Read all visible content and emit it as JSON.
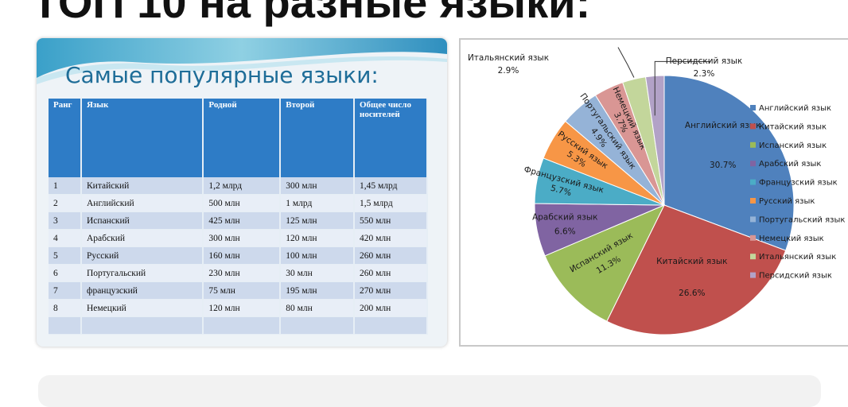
{
  "headline": "ТОП 10 на разные языки:",
  "slide": {
    "title": "Самые популярные языки:",
    "table": {
      "headers": [
        "Ранг",
        "Язык",
        "Родной",
        "Второй",
        "Общее число носителей"
      ],
      "rows": [
        [
          "1",
          "Китайский",
          "1,2 млрд",
          "300 млн",
          "1,45 млрд"
        ],
        [
          "2",
          "Английский",
          "500 млн",
          "1 млрд",
          "1,5 млрд"
        ],
        [
          "3",
          "Испанский",
          "425 млн",
          "125 млн",
          "550 млн"
        ],
        [
          "4",
          "Арабский",
          "300 млн",
          "120 млн",
          "420 млн"
        ],
        [
          "5",
          "Русский",
          "160 млн",
          "100 млн",
          "260 млн"
        ],
        [
          "6",
          "Португальский",
          "230 млн",
          "30 млн",
          "260 млн"
        ],
        [
          "7",
          "французский",
          "75 млн",
          "195 млн",
          "270 млн"
        ],
        [
          "8",
          "Немецкий",
          "120 млн",
          "80 млн",
          "200 млн"
        ]
      ]
    }
  },
  "chart_data": {
    "type": "pie",
    "title": "",
    "slices": [
      {
        "name": "Английский язык",
        "value": 30.7,
        "label": "30.7%",
        "color": "#4f81bd"
      },
      {
        "name": "Китайский язык",
        "value": 26.6,
        "label": "26.6%",
        "color": "#c0504d"
      },
      {
        "name": "Испанский язык",
        "value": 11.3,
        "label": "11.3%",
        "color": "#9bbb59"
      },
      {
        "name": "Арабский язык",
        "value": 6.6,
        "label": "6.6%",
        "color": "#8064a2"
      },
      {
        "name": "Французский язык",
        "value": 5.7,
        "label": "5.7%",
        "color": "#4bacc6"
      },
      {
        "name": "Русский язык",
        "value": 5.3,
        "label": "5.3%",
        "color": "#f79646"
      },
      {
        "name": "Португальский язык",
        "value": 4.9,
        "label": "4.9%",
        "color": "#95b3d7"
      },
      {
        "name": "Немецкий язык",
        "value": 3.7,
        "label": "3.7%",
        "color": "#d99694"
      },
      {
        "name": "Итальянский язык",
        "value": 2.9,
        "label": "2.9%",
        "color": "#c3d69b"
      },
      {
        "name": "Персидский язык",
        "value": 2.3,
        "label": "2.3%",
        "color": "#b2a2c7"
      }
    ],
    "legend_position": "right"
  }
}
